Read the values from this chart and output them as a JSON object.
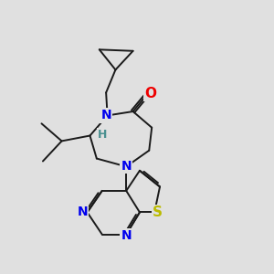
{
  "background_color": "#e0e0e0",
  "bond_color": "#1a1a1a",
  "N_color": "#0000ee",
  "O_color": "#ee0000",
  "S_color": "#bbbb00",
  "H_color": "#4a9090",
  "line_width": 1.4,
  "font_size_atom": 10,
  "fig_w": 3.0,
  "fig_h": 3.0,
  "dpi": 100,
  "xlim": [
    0,
    10
  ],
  "ylim": [
    0,
    10
  ]
}
